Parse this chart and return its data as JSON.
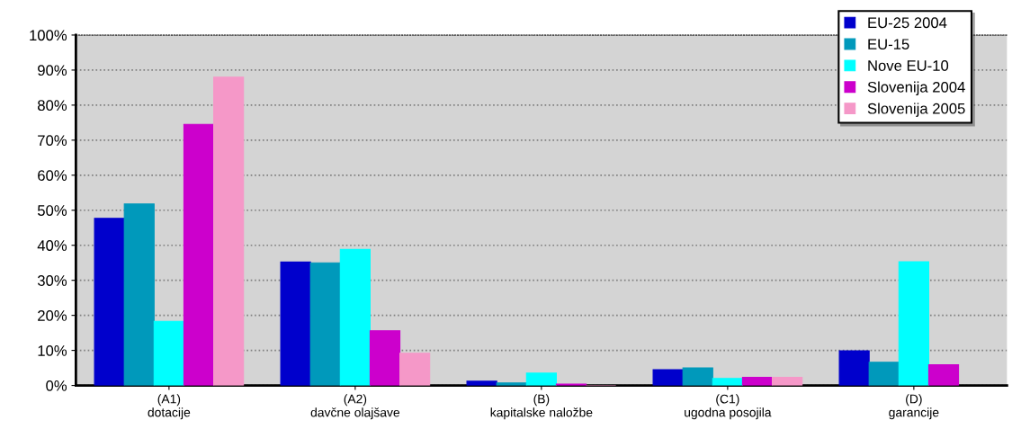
{
  "chart_data": {
    "type": "bar",
    "categories": [
      "(A1)\ndotacije",
      "(A2)\ndavčne olajšave",
      "(B)\nkapitalske naložbe",
      "(C1)\nugodna posojila",
      "(D)\ngarancije"
    ],
    "series": [
      {
        "name": "EU-25 2004",
        "color": "#0000cc",
        "values": [
          47.7,
          35.2,
          1.2,
          4.5,
          9.9
        ]
      },
      {
        "name": "EU-15",
        "color": "#0099bb",
        "values": [
          51.8,
          35.0,
          0.7,
          5.0,
          6.6
        ]
      },
      {
        "name": "Nove EU-10",
        "color": "#00ffff",
        "values": [
          18.3,
          38.8,
          3.5,
          2.0,
          35.3
        ]
      },
      {
        "name": "Slovenija 2004",
        "color": "#cc00cc",
        "values": [
          74.5,
          15.6,
          0.4,
          2.3,
          5.9
        ]
      },
      {
        "name": "Slovenija 2005",
        "color": "#f598c8",
        "values": [
          88.0,
          9.2,
          0.0,
          2.3,
          null
        ]
      }
    ],
    "ylim": [
      0,
      100
    ],
    "yticks": [
      {
        "value": 0,
        "label": "0%"
      },
      {
        "value": 10,
        "label": "10%"
      },
      {
        "value": 20,
        "label": "20%"
      },
      {
        "value": 30,
        "label": "30%"
      },
      {
        "value": 40,
        "label": "40%"
      },
      {
        "value": 50,
        "label": "50%"
      },
      {
        "value": 60,
        "label": "60%"
      },
      {
        "value": 70,
        "label": "70%"
      },
      {
        "value": 80,
        "label": "80%"
      },
      {
        "value": 90,
        "label": "90%"
      },
      {
        "value": 100,
        "label": "100%"
      }
    ],
    "grid": "y",
    "legend": "top right"
  }
}
